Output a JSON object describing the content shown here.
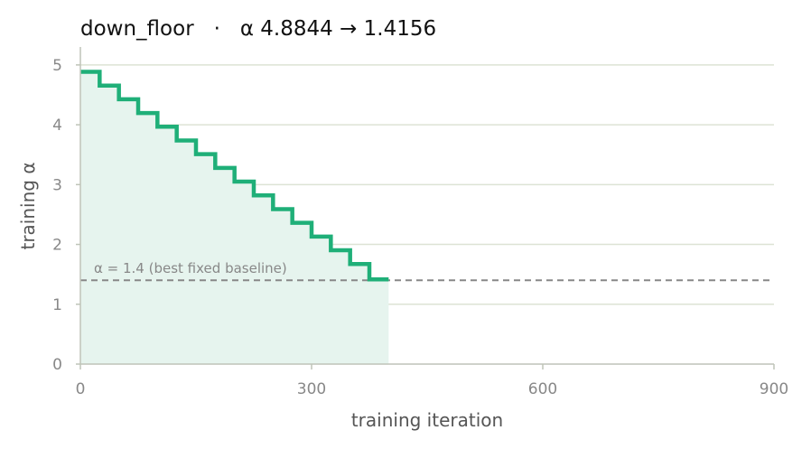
{
  "chart_data": {
    "type": "line",
    "title": "down_floor   ·   α 4.8844 → 1.4156",
    "xlabel": "training iteration",
    "ylabel": "training α",
    "xlim": [
      0,
      900
    ],
    "ylim": [
      0,
      5.3
    ],
    "x_ticks": [
      "0",
      "300",
      "600",
      "900"
    ],
    "y_ticks": [
      "0",
      "1",
      "2",
      "3",
      "4",
      "5"
    ],
    "grid": "horizontal",
    "series": [
      {
        "step": "post",
        "color": "#1faf78",
        "fill_color": "#e6f4ee",
        "x": [
          0,
          25,
          50,
          75,
          100,
          125,
          150,
          175,
          200,
          225,
          250,
          275,
          300,
          325,
          350,
          375,
          400
        ],
        "y": [
          4.8844,
          4.655,
          4.4256,
          4.1962,
          3.9668,
          3.7374,
          3.508,
          3.2786,
          3.0492,
          2.8198,
          2.5904,
          2.361,
          2.1316,
          1.9022,
          1.6728,
          1.4156,
          1.4156
        ]
      }
    ],
    "reference_line": {
      "y": 1.4,
      "label": "α = 1.4 (best fixed baseline)",
      "color": "#888888",
      "style": "dashed"
    }
  }
}
